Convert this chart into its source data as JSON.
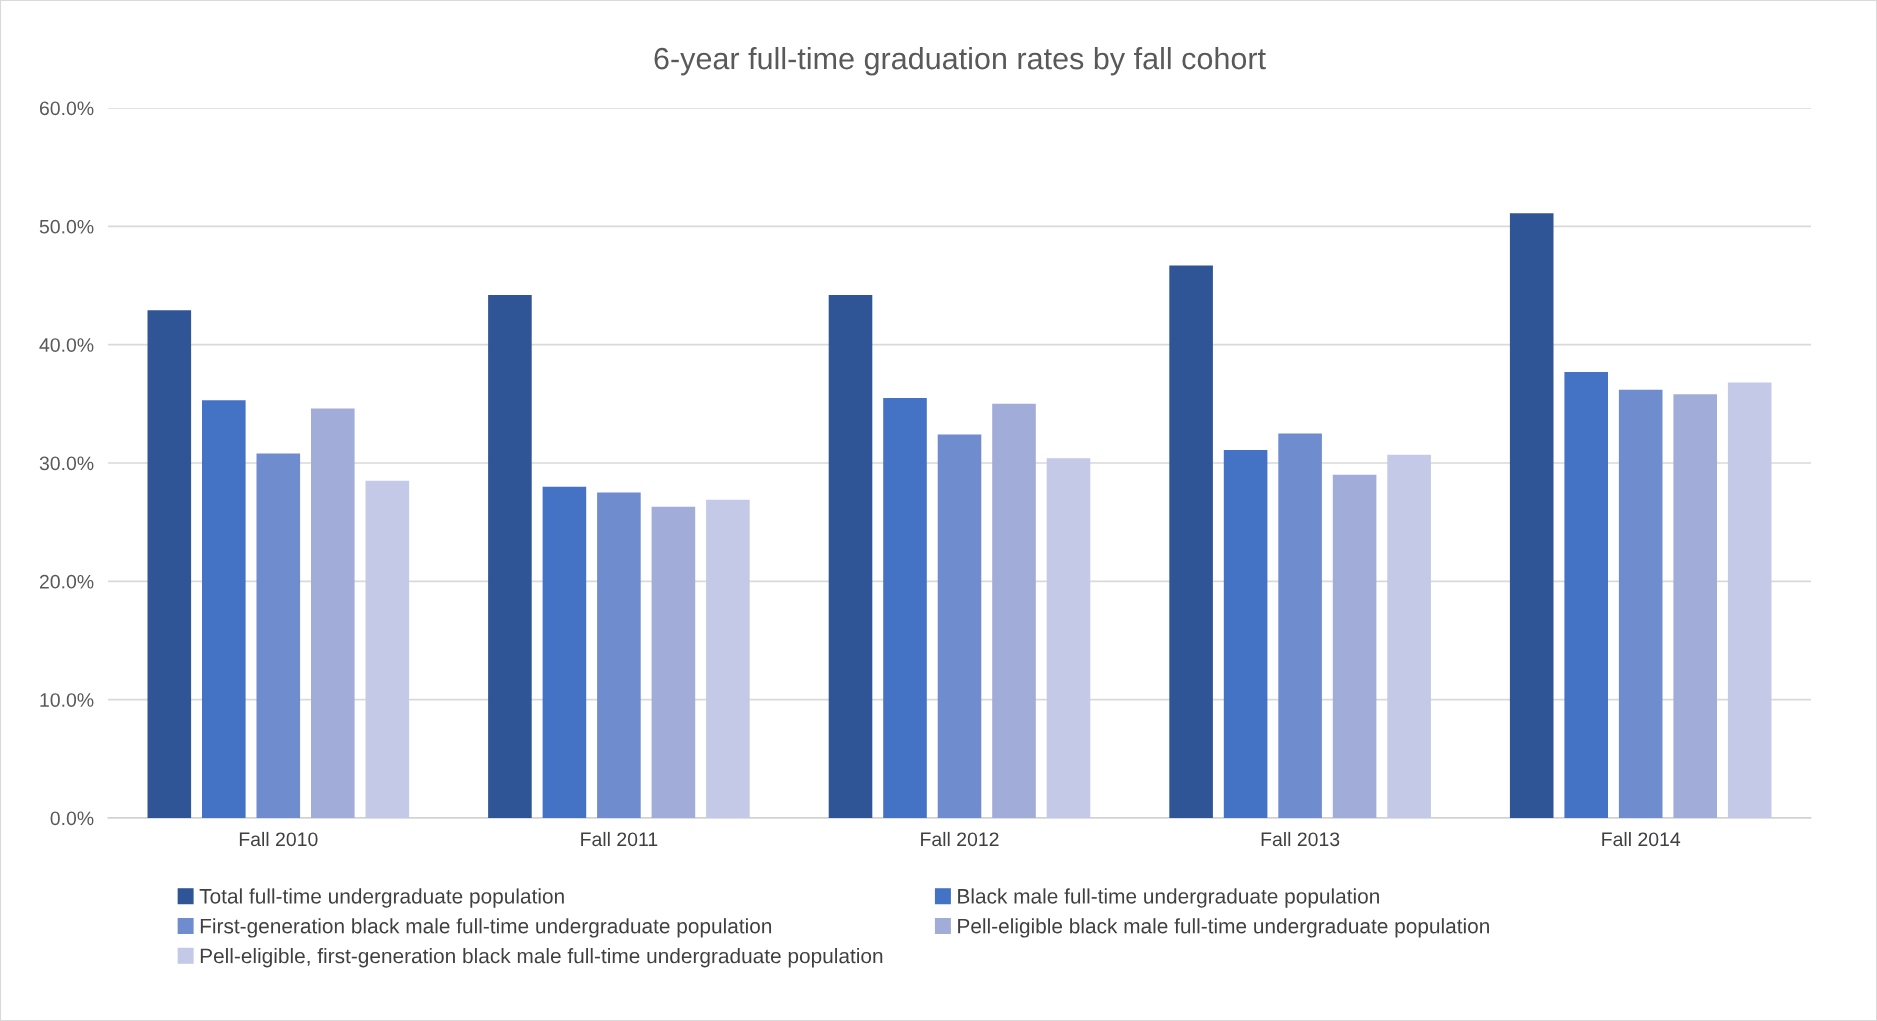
{
  "chart_data": {
    "type": "bar",
    "title": "6-year full-time graduation rates by fall cohort",
    "categories": [
      "Fall 2010",
      "Fall 2011",
      "Fall 2012",
      "Fall 2013",
      "Fall 2014"
    ],
    "series": [
      {
        "name": "Total full-time undergraduate population",
        "color": "#2f5597",
        "values": [
          42.9,
          44.2,
          44.2,
          46.7,
          51.1
        ]
      },
      {
        "name": "Black male full-time undergraduate population",
        "color": "#4472c4",
        "values": [
          35.3,
          28.0,
          35.5,
          31.1,
          37.7
        ]
      },
      {
        "name": "First-generation black male full-time undergraduate population",
        "color": "#6f8ccf",
        "values": [
          30.8,
          27.5,
          32.4,
          32.5,
          36.2
        ]
      },
      {
        "name": "Pell-eligible black male full-time undergraduate population",
        "color": "#a1acd9",
        "values": [
          34.6,
          26.3,
          35.0,
          29.0,
          35.8
        ]
      },
      {
        "name": "Pell-eligible, first-generation black male full-time undergraduate population",
        "color": "#c3c9e6",
        "values": [
          28.5,
          26.9,
          30.4,
          30.7,
          36.8
        ]
      }
    ],
    "ylim": [
      0,
      60
    ],
    "yticks": [
      {
        "value": 0,
        "label": "0.0%"
      },
      {
        "value": 10,
        "label": "10.0%"
      },
      {
        "value": 20,
        "label": "20.0%"
      },
      {
        "value": 30,
        "label": "30.0%"
      },
      {
        "value": 40,
        "label": "40.0%"
      },
      {
        "value": 50,
        "label": "50.0%"
      },
      {
        "value": 60,
        "label": "60.0%"
      }
    ],
    "grid": "y",
    "legend": "bottom"
  }
}
